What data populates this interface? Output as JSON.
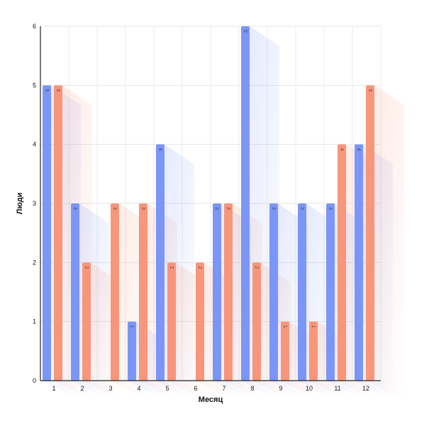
{
  "chart_data": {
    "type": "bar",
    "categories": [
      "1",
      "2",
      "3",
      "4",
      "5",
      "6",
      "7",
      "8",
      "9",
      "10",
      "11",
      "12"
    ],
    "series": [
      {
        "values": [
          5,
          3,
          0,
          1,
          4,
          0,
          3,
          6,
          3,
          3,
          3,
          4
        ],
        "color": "#7b96f7"
      },
      {
        "values": [
          5,
          2,
          3,
          3,
          2,
          2,
          3,
          2,
          1,
          1,
          4,
          5
        ],
        "color": "#f7967b"
      }
    ],
    "xlabel": "Месяц",
    "ylabel": "Люди",
    "ylim": [
      0,
      6
    ],
    "yticks": [
      "0",
      "1",
      "2",
      "3",
      "4",
      "5",
      "6"
    ],
    "grid": true,
    "data_labels": true
  }
}
